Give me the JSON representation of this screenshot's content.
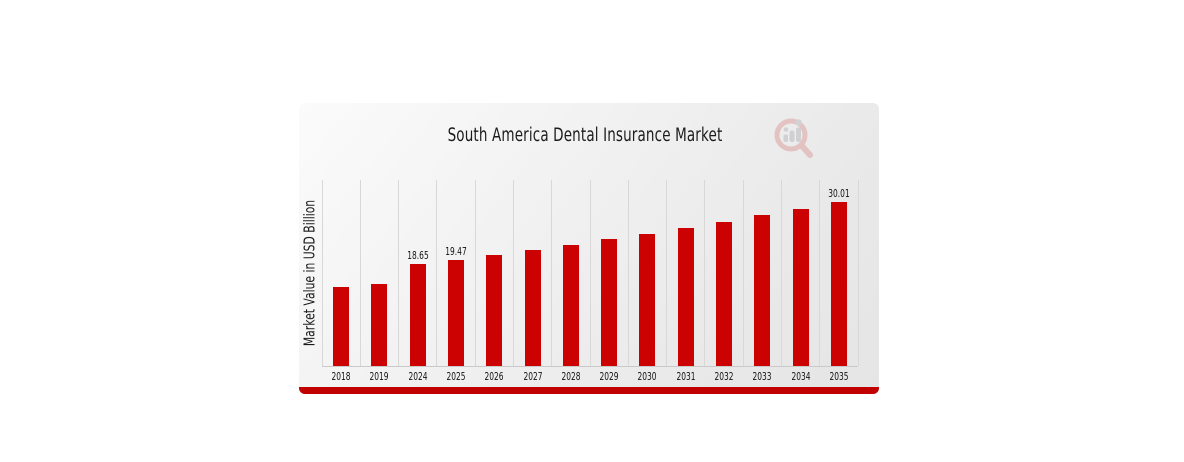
{
  "page": {
    "background_color": "#ffffff"
  },
  "card": {
    "accent_strip_color": "#c10000",
    "watermark_icon": "magnifier-bar-chart-icon"
  },
  "chart_data": {
    "type": "bar",
    "title": "South America Dental Insurance Market",
    "ylabel": "Market Value in USD Billion",
    "xlabel": "",
    "categories": [
      "2018",
      "2019",
      "2024",
      "2025",
      "2026",
      "2027",
      "2028",
      "2029",
      "2030",
      "2031",
      "2032",
      "2033",
      "2034",
      "2035"
    ],
    "values": [
      14.4,
      15.04,
      18.65,
      19.47,
      20.33,
      21.23,
      22.17,
      23.15,
      24.17,
      25.24,
      26.35,
      27.52,
      28.73,
      30.01
    ],
    "value_labels": {
      "2024": "18.65",
      "2025": "19.47",
      "2035": "30.01"
    },
    "bar_color": "#cc0101",
    "text_color": "#111111",
    "gridline_color": "#d8d8d8",
    "ylim": [
      0,
      34
    ],
    "grid": "vertical-category-boundaries",
    "y_tick_labels": "none",
    "legend": "none"
  }
}
